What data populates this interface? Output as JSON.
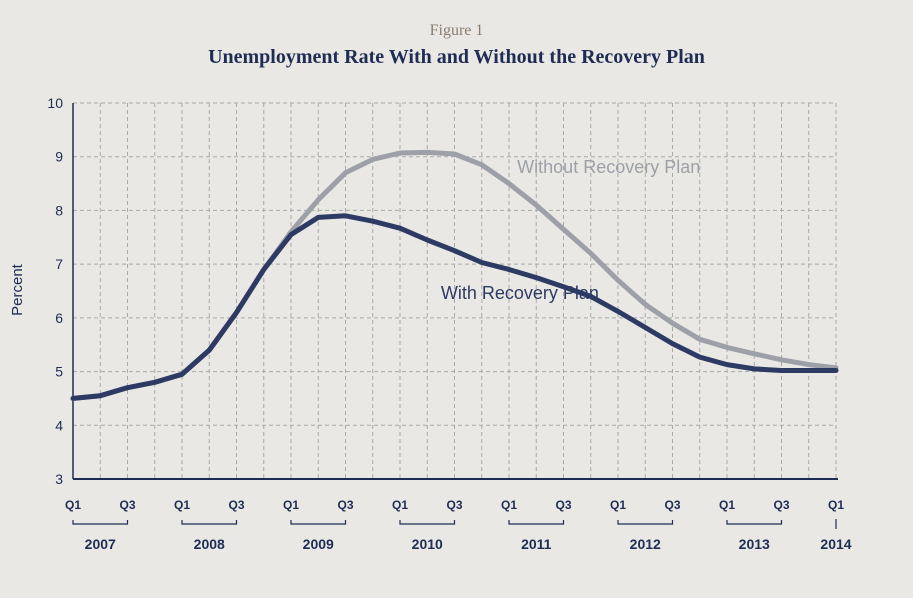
{
  "figure": {
    "number_label": "Figure 1",
    "title": "Unemployment Rate With and Without the Recovery Plan"
  },
  "colors": {
    "background": "#e9e8e4",
    "with_plan": "#2d3a63",
    "without_plan": "#9ea0a8",
    "axis": "#1f2d55",
    "grid": "#a9a9a9"
  },
  "chart_data": {
    "type": "line",
    "title": "Unemployment Rate With and Without the Recovery Plan",
    "ylabel": "Percent",
    "xlabel": "",
    "ylim": [
      3,
      10
    ],
    "yticks": [
      3,
      4,
      5,
      6,
      7,
      8,
      9,
      10
    ],
    "grid": true,
    "x": [
      "2007 Q1",
      "2007 Q2",
      "2007 Q3",
      "2007 Q4",
      "2008 Q1",
      "2008 Q2",
      "2008 Q3",
      "2008 Q4",
      "2009 Q1",
      "2009 Q2",
      "2009 Q3",
      "2009 Q4",
      "2010 Q1",
      "2010 Q2",
      "2010 Q3",
      "2010 Q4",
      "2011 Q1",
      "2011 Q2",
      "2011 Q3",
      "2011 Q4",
      "2012 Q1",
      "2012 Q2",
      "2012 Q3",
      "2012 Q4",
      "2013 Q1",
      "2013 Q2",
      "2013 Q3",
      "2013 Q4",
      "2014 Q1"
    ],
    "quarter_ticks": [
      {
        "label": "Q1",
        "index": 0
      },
      {
        "label": "Q3",
        "index": 2
      },
      {
        "label": "Q1",
        "index": 4
      },
      {
        "label": "Q3",
        "index": 6
      },
      {
        "label": "Q1",
        "index": 8
      },
      {
        "label": "Q3",
        "index": 10
      },
      {
        "label": "Q1",
        "index": 12
      },
      {
        "label": "Q3",
        "index": 14
      },
      {
        "label": "Q1",
        "index": 16
      },
      {
        "label": "Q3",
        "index": 18
      },
      {
        "label": "Q1",
        "index": 20
      },
      {
        "label": "Q3",
        "index": 22
      },
      {
        "label": "Q1",
        "index": 24
      },
      {
        "label": "Q3",
        "index": 26
      },
      {
        "label": "Q1",
        "index": 28
      }
    ],
    "year_labels": [
      {
        "label": "2007",
        "start": 0,
        "end": 2
      },
      {
        "label": "2008",
        "start": 4,
        "end": 6
      },
      {
        "label": "2009",
        "start": 8,
        "end": 10
      },
      {
        "label": "2010",
        "start": 12,
        "end": 14
      },
      {
        "label": "2011",
        "start": 16,
        "end": 18
      },
      {
        "label": "2012",
        "start": 20,
        "end": 22
      },
      {
        "label": "2013",
        "start": 24,
        "end": 26
      },
      {
        "label": "2014",
        "start": 28,
        "end": 28
      }
    ],
    "series": [
      {
        "name": "Without Recovery Plan",
        "label_anchor": {
          "index": 16.3,
          "value": 8.7
        },
        "values": [
          4.5,
          4.55,
          4.7,
          4.8,
          4.95,
          5.4,
          6.1,
          6.9,
          7.6,
          8.2,
          8.7,
          8.95,
          9.07,
          9.08,
          9.05,
          8.85,
          8.5,
          8.1,
          7.65,
          7.2,
          6.7,
          6.25,
          5.9,
          5.6,
          5.45,
          5.33,
          5.22,
          5.13,
          5.07
        ]
      },
      {
        "name": "With Recovery Plan",
        "label_anchor": {
          "index": 13.5,
          "value": 6.35
        },
        "values": [
          4.5,
          4.55,
          4.7,
          4.8,
          4.95,
          5.4,
          6.1,
          6.9,
          7.55,
          7.87,
          7.9,
          7.8,
          7.67,
          7.45,
          7.25,
          7.03,
          6.9,
          6.75,
          6.58,
          6.4,
          6.12,
          5.82,
          5.52,
          5.27,
          5.13,
          5.05,
          5.02,
          5.02,
          5.02
        ]
      }
    ]
  }
}
